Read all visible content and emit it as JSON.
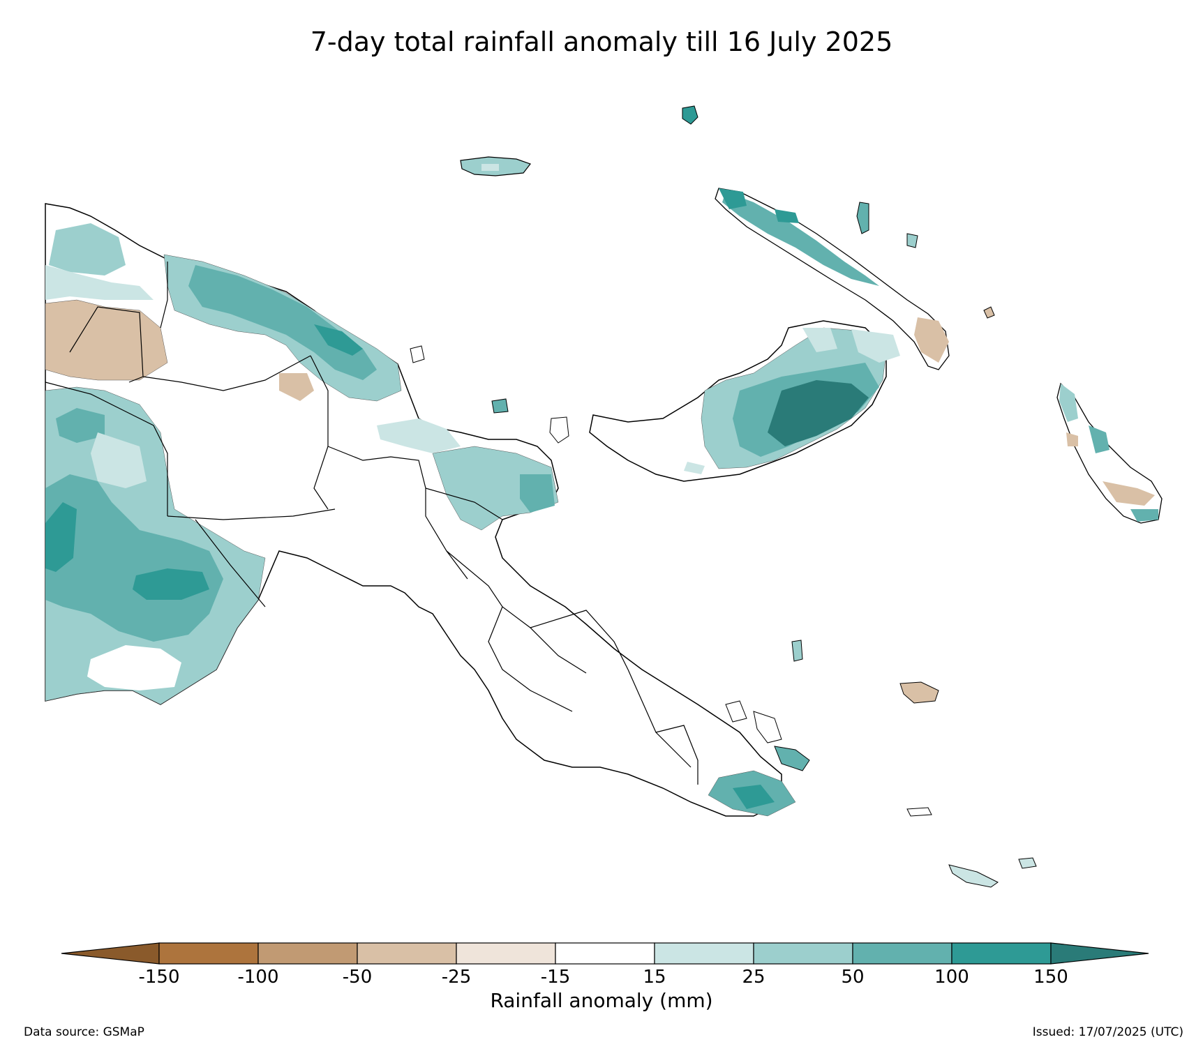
{
  "title": "7-day total rainfall anomaly till 16 July 2025",
  "colorbar": {
    "label": "Rainfall anomaly (mm)",
    "ticks": [
      "-150",
      "-100",
      "-50",
      "-25",
      "-15",
      "15",
      "25",
      "50",
      "100",
      "150"
    ],
    "colors": {
      "below_-150": "#8a5a2b",
      "-150_-100": "#ad743d",
      "-100_-50": "#c19a73",
      "-50_-25": "#d9c0a6",
      "-25_-15": "#efe4da",
      "-15_15": "#ffffff",
      "15_25": "#cbe5e4",
      "25_50": "#9ccfcd",
      "50_100": "#62b1ae",
      "100_150": "#2e9a95",
      "above_150": "#2a7b78"
    }
  },
  "footer": {
    "source": "Data source: GSMaP",
    "issued": "Issued: 17/07/2025 (UTC)"
  }
}
